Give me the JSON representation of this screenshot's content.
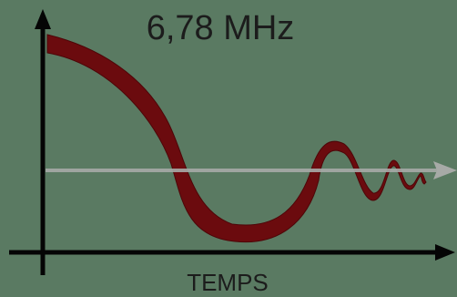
{
  "frequency_label": "6,78 MHz",
  "x_axis_label": "TEMPS",
  "colors": {
    "background": "#5a7a62",
    "axis": "#050505",
    "signal": "#6b0b0e",
    "baseline_arrow": "#a7aaa7",
    "text": "#1c1c1c"
  }
}
